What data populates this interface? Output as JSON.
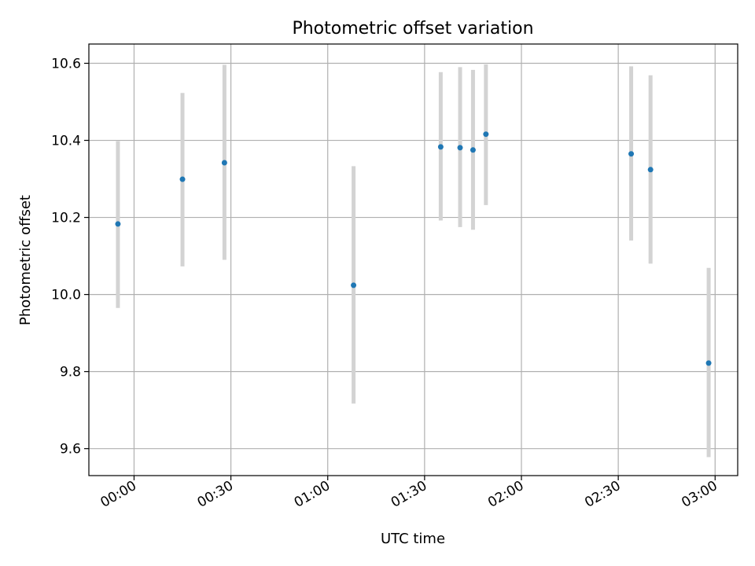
{
  "chart_data": {
    "type": "scatter",
    "title": "Photometric offset variation",
    "xlabel": "UTC time",
    "ylabel": "Photometric offset",
    "x_ticks": [
      "00:00",
      "00:30",
      "01:00",
      "01:30",
      "02:00",
      "02:30",
      "03:00"
    ],
    "y_ticks": [
      "9.6",
      "9.8",
      "10.0",
      "10.2",
      "10.4",
      "10.6"
    ],
    "xlim": [
      "-00:14",
      "03:07"
    ],
    "ylim": [
      9.53,
      10.65
    ],
    "grid": true,
    "colors": {
      "points": "#1f77b4",
      "error_bars": "#d3d3d3",
      "grid": "#b0b0b0"
    },
    "x": [
      "-00:05",
      "00:15",
      "00:28",
      "01:08",
      "01:35",
      "01:41",
      "01:45",
      "01:49",
      "02:34",
      "02:40",
      "02:58"
    ],
    "y": [
      10.183,
      10.299,
      10.342,
      10.024,
      10.383,
      10.381,
      10.375,
      10.416,
      10.365,
      10.324,
      9.822
    ],
    "yerr_low": [
      9.965,
      10.073,
      10.09,
      9.717,
      10.192,
      10.175,
      10.168,
      10.232,
      10.14,
      10.08,
      9.578
    ],
    "yerr_high": [
      10.398,
      10.523,
      10.596,
      10.333,
      10.577,
      10.59,
      10.583,
      10.597,
      10.592,
      10.569,
      10.069
    ]
  }
}
